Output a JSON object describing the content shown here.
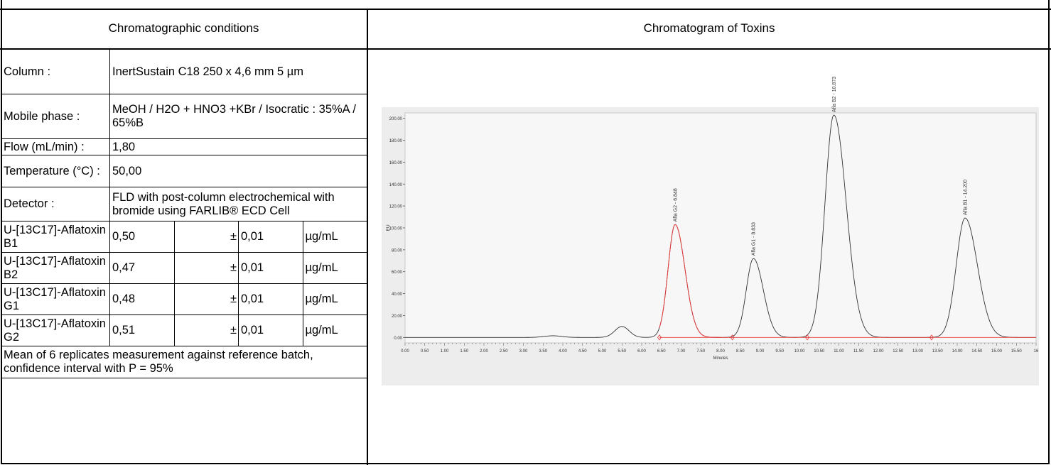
{
  "headers": {
    "left": "Chromatographic conditions",
    "right": "Chromatogram of Toxins"
  },
  "conditions": {
    "column": {
      "label": "Column :",
      "value": "InertSustain C18 250 x 4,6 mm 5 µm"
    },
    "mobile_phase": {
      "label": "Mobile phase :",
      "value": "MeOH / H2O + HNO3 +KBr / Isocratic : 35%A / 65%B"
    },
    "flow": {
      "label": "Flow (mL/min) :",
      "value": "1,80"
    },
    "temperature": {
      "label": "Temperature (°C) :",
      "value": "50,00"
    },
    "detector": {
      "label": "Detector :",
      "value": "FLD with post-column electrochemical with bromide using FARLIB® ECD Cell"
    }
  },
  "standards": [
    {
      "label": "U-[13C17]-Aflatoxin B1",
      "value": "0,50",
      "pm": "±",
      "uncertainty": "0,01",
      "unit": "µg/mL"
    },
    {
      "label": "U-[13C17]-Aflatoxin B2",
      "value": "0,47",
      "pm": "±",
      "uncertainty": "0,01",
      "unit": "µg/mL"
    },
    {
      "label": "U-[13C17]-Aflatoxin G1",
      "value": "0,48",
      "pm": "±",
      "uncertainty": "0,01",
      "unit": "µg/mL"
    },
    {
      "label": "U-[13C17]-Aflatoxin G2",
      "value": "0,51",
      "pm": "±",
      "uncertainty": "0,01",
      "unit": "µg/mL"
    }
  ],
  "footnote": "Mean of 6 replicates measurement against reference batch, confidence interval with P = 95%",
  "chart_data": {
    "type": "line",
    "xlabel": "Minutes",
    "ylabel": "EU",
    "xlim": [
      0,
      16.0
    ],
    "ylim": [
      -5,
      205
    ],
    "x_ticks": [
      "0.00",
      "0.50",
      "1.00",
      "1.50",
      "2.00",
      "2.50",
      "3.00",
      "3.50",
      "4.00",
      "4.50",
      "5.00",
      "5.50",
      "6.00",
      "6.50",
      "7.00",
      "7.50",
      "8.00",
      "8.50",
      "9.00",
      "9.50",
      "10.00",
      "10.50",
      "11.00",
      "11.50",
      "12.00",
      "12.50",
      "13.00",
      "13.50",
      "14.00",
      "14.50",
      "15.00",
      "15.50",
      "16"
    ],
    "y_ticks": [
      "0.00",
      "20.00",
      "40.00",
      "60.00",
      "80.00",
      "100.00",
      "120.00",
      "140.00",
      "160.00",
      "180.00",
      "200.00"
    ],
    "trace_color": "#333333",
    "highlight_color": "#e83a3a",
    "baseline_color": "#e83a3a",
    "minor_bumps": [
      {
        "rt": 3.75,
        "height": 1.5,
        "width": 0.22
      },
      {
        "rt": 5.5,
        "height": 10,
        "width": 0.18
      }
    ],
    "peaks": [
      {
        "label": "Afla G2 - 6.848",
        "rt": 6.848,
        "height": 103,
        "width": 0.2,
        "highlighted": true
      },
      {
        "label": "Afla G1 - 8.833",
        "rt": 8.833,
        "height": 72,
        "width": 0.2,
        "highlighted": false
      },
      {
        "label": "Afla B2 - 10.873",
        "rt": 10.873,
        "height": 203,
        "width": 0.25,
        "highlighted": false
      },
      {
        "label": "Afla B1 - 14.200",
        "rt": 14.2,
        "height": 109,
        "width": 0.25,
        "highlighted": false
      }
    ],
    "integration_markers": [
      6.45,
      8.3,
      10.2,
      13.35
    ]
  }
}
